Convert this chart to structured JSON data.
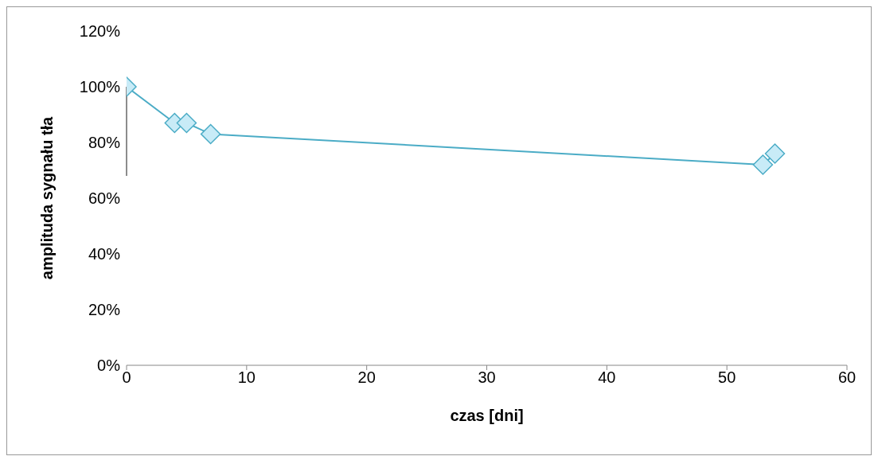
{
  "chart_data": {
    "type": "line",
    "xlabel": "czas [dni]",
    "ylabel": "amplituda sygnału tła",
    "x": [
      0,
      4,
      5,
      7,
      53,
      54
    ],
    "series": [
      {
        "color": "#4bacc6",
        "values": [
          100,
          87,
          87,
          83,
          72,
          76
        ],
        "errors": [
          [
            68,
            100
          ],
          null,
          null,
          null,
          null,
          null
        ]
      }
    ],
    "marker": "diamond",
    "line_style": "solid",
    "grid": false,
    "legend": false,
    "xlim": [
      0,
      60
    ],
    "xticks": [
      0,
      10,
      20,
      30,
      40,
      50,
      60
    ],
    "ylim": [
      0,
      120
    ],
    "yticks": [
      {
        "value": 0,
        "label": "0%"
      },
      {
        "value": 20,
        "label": "20%"
      },
      {
        "value": 40,
        "label": "40%"
      },
      {
        "value": 60,
        "label": "60%"
      },
      {
        "value": 80,
        "label": "80%"
      },
      {
        "value": 100,
        "label": "100%"
      },
      {
        "value": 120,
        "label": "120%"
      }
    ]
  }
}
